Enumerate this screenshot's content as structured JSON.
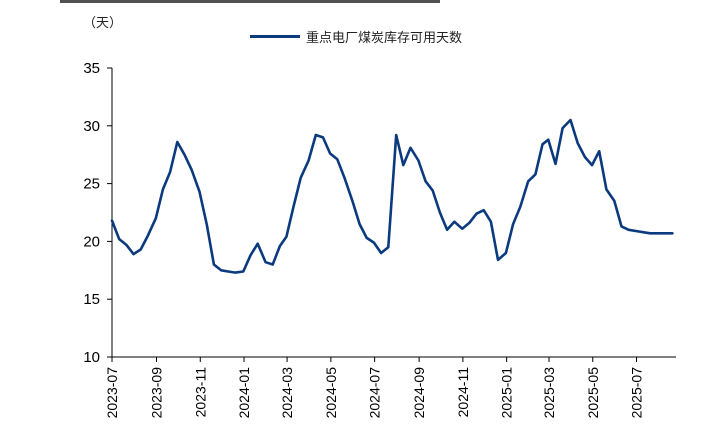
{
  "chart_data": {
    "type": "line",
    "unit_label": "（天）",
    "series": [
      {
        "name": "重点电厂煤炭库存可用天数",
        "color": "#0b3a7e",
        "x": [
          "2023-07-01",
          "2023-07-11",
          "2023-07-21",
          "2023-07-31",
          "2023-08-10",
          "2023-08-20",
          "2023-08-31",
          "2023-09-10",
          "2023-09-20",
          "2023-09-30",
          "2023-10-10",
          "2023-10-20",
          "2023-10-31",
          "2023-11-10",
          "2023-11-20",
          "2023-11-30",
          "2023-12-10",
          "2023-12-20",
          "2023-12-31",
          "2024-01-10",
          "2024-01-20",
          "2024-01-31",
          "2024-02-10",
          "2024-02-20",
          "2024-02-29",
          "2024-03-10",
          "2024-03-20",
          "2024-03-31",
          "2024-04-10",
          "2024-04-20",
          "2024-04-30",
          "2024-05-10",
          "2024-05-20",
          "2024-05-31",
          "2024-06-10",
          "2024-06-20",
          "2024-06-30",
          "2024-07-10",
          "2024-07-20",
          "2024-07-31",
          "2024-08-10",
          "2024-08-20",
          "2024-08-31",
          "2024-09-10",
          "2024-09-20",
          "2024-09-30",
          "2024-10-10",
          "2024-10-20",
          "2024-10-31",
          "2024-11-10",
          "2024-11-20",
          "2024-11-30",
          "2024-12-10",
          "2024-12-20",
          "2024-12-31",
          "2025-01-10",
          "2025-01-20",
          "2025-01-31",
          "2025-02-10",
          "2025-02-20",
          "2025-02-28",
          "2025-03-10",
          "2025-03-20",
          "2025-03-31",
          "2025-04-10",
          "2025-04-20",
          "2025-04-30",
          "2025-05-10",
          "2025-05-20",
          "2025-05-31",
          "2025-06-10",
          "2025-06-20",
          "2025-06-30",
          "2025-07-10",
          "2025-07-20",
          "2025-07-31",
          "2025-08-10",
          "2025-08-20"
        ],
        "values": [
          21.8,
          20.2,
          19.7,
          18.9,
          19.3,
          20.5,
          22.0,
          24.5,
          26.0,
          28.6,
          27.5,
          26.2,
          24.3,
          21.5,
          18.0,
          17.5,
          17.4,
          17.3,
          17.4,
          18.8,
          19.8,
          18.2,
          18.0,
          19.6,
          20.4,
          23.0,
          25.5,
          27.0,
          29.2,
          29.0,
          27.6,
          27.1,
          25.5,
          23.5,
          21.5,
          20.3,
          19.9,
          19.0,
          19.5,
          29.2,
          26.6,
          28.1,
          27.0,
          25.2,
          24.4,
          22.5,
          21.0,
          21.7,
          21.1,
          21.6,
          22.4,
          22.7,
          21.7,
          18.4,
          19.0,
          21.5,
          23.0,
          25.2,
          25.8,
          28.4,
          28.8,
          26.7,
          29.8,
          30.5,
          28.5,
          27.3,
          26.6,
          27.8,
          24.5,
          23.5,
          21.3,
          21.0,
          20.9,
          20.8,
          20.7,
          20.7,
          20.7,
          20.7
        ]
      }
    ],
    "x_ticks": [
      "2023-07",
      "2023-09",
      "2023-11",
      "2024-01",
      "2024-03",
      "2024-05",
      "2024-07",
      "2024-09",
      "2024-11",
      "2025-01",
      "2025-03",
      "2025-05",
      "2025-07"
    ],
    "y_ticks": [
      10,
      15,
      20,
      25,
      30,
      35
    ],
    "ylim": [
      10,
      35
    ],
    "xlim": [
      "2023-07-01",
      "2025-08-25"
    ],
    "grid": false,
    "legend_position": "top-center"
  }
}
